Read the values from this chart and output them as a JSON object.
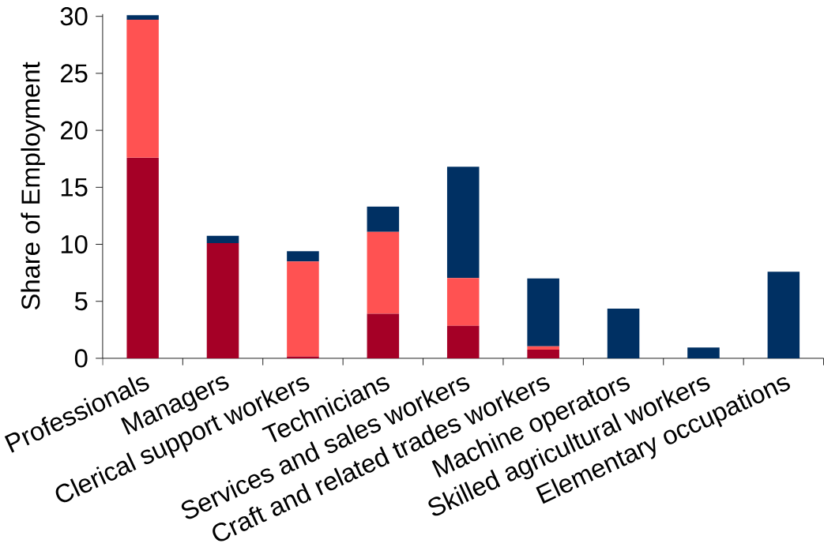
{
  "chart_data": {
    "type": "bar",
    "stacked": true,
    "ylabel": "Share of Employment",
    "categories": [
      "Professionals",
      "Managers",
      "Clerical support workers",
      "Technicians",
      "Services and sales workers",
      "Craft and related trades workers",
      "Machine operators",
      "Skilled agricultural workers",
      "Elementary occupations"
    ],
    "series": [
      {
        "color": "#a50026",
        "values": [
          17.6,
          10.1,
          0.15,
          3.9,
          2.85,
          0.75,
          0,
          0,
          0
        ]
      },
      {
        "color": "#ff5252",
        "values": [
          12.1,
          0,
          8.35,
          7.2,
          4.2,
          0.3,
          0,
          0,
          0
        ]
      },
      {
        "color": "#003063",
        "values": [
          0.4,
          0.65,
          0.9,
          2.2,
          9.75,
          5.95,
          4.35,
          0.95,
          7.6
        ]
      }
    ],
    "ylim": [
      0,
      30.2
    ],
    "yticks": [
      0,
      5,
      10,
      15,
      20,
      25,
      30
    ]
  }
}
